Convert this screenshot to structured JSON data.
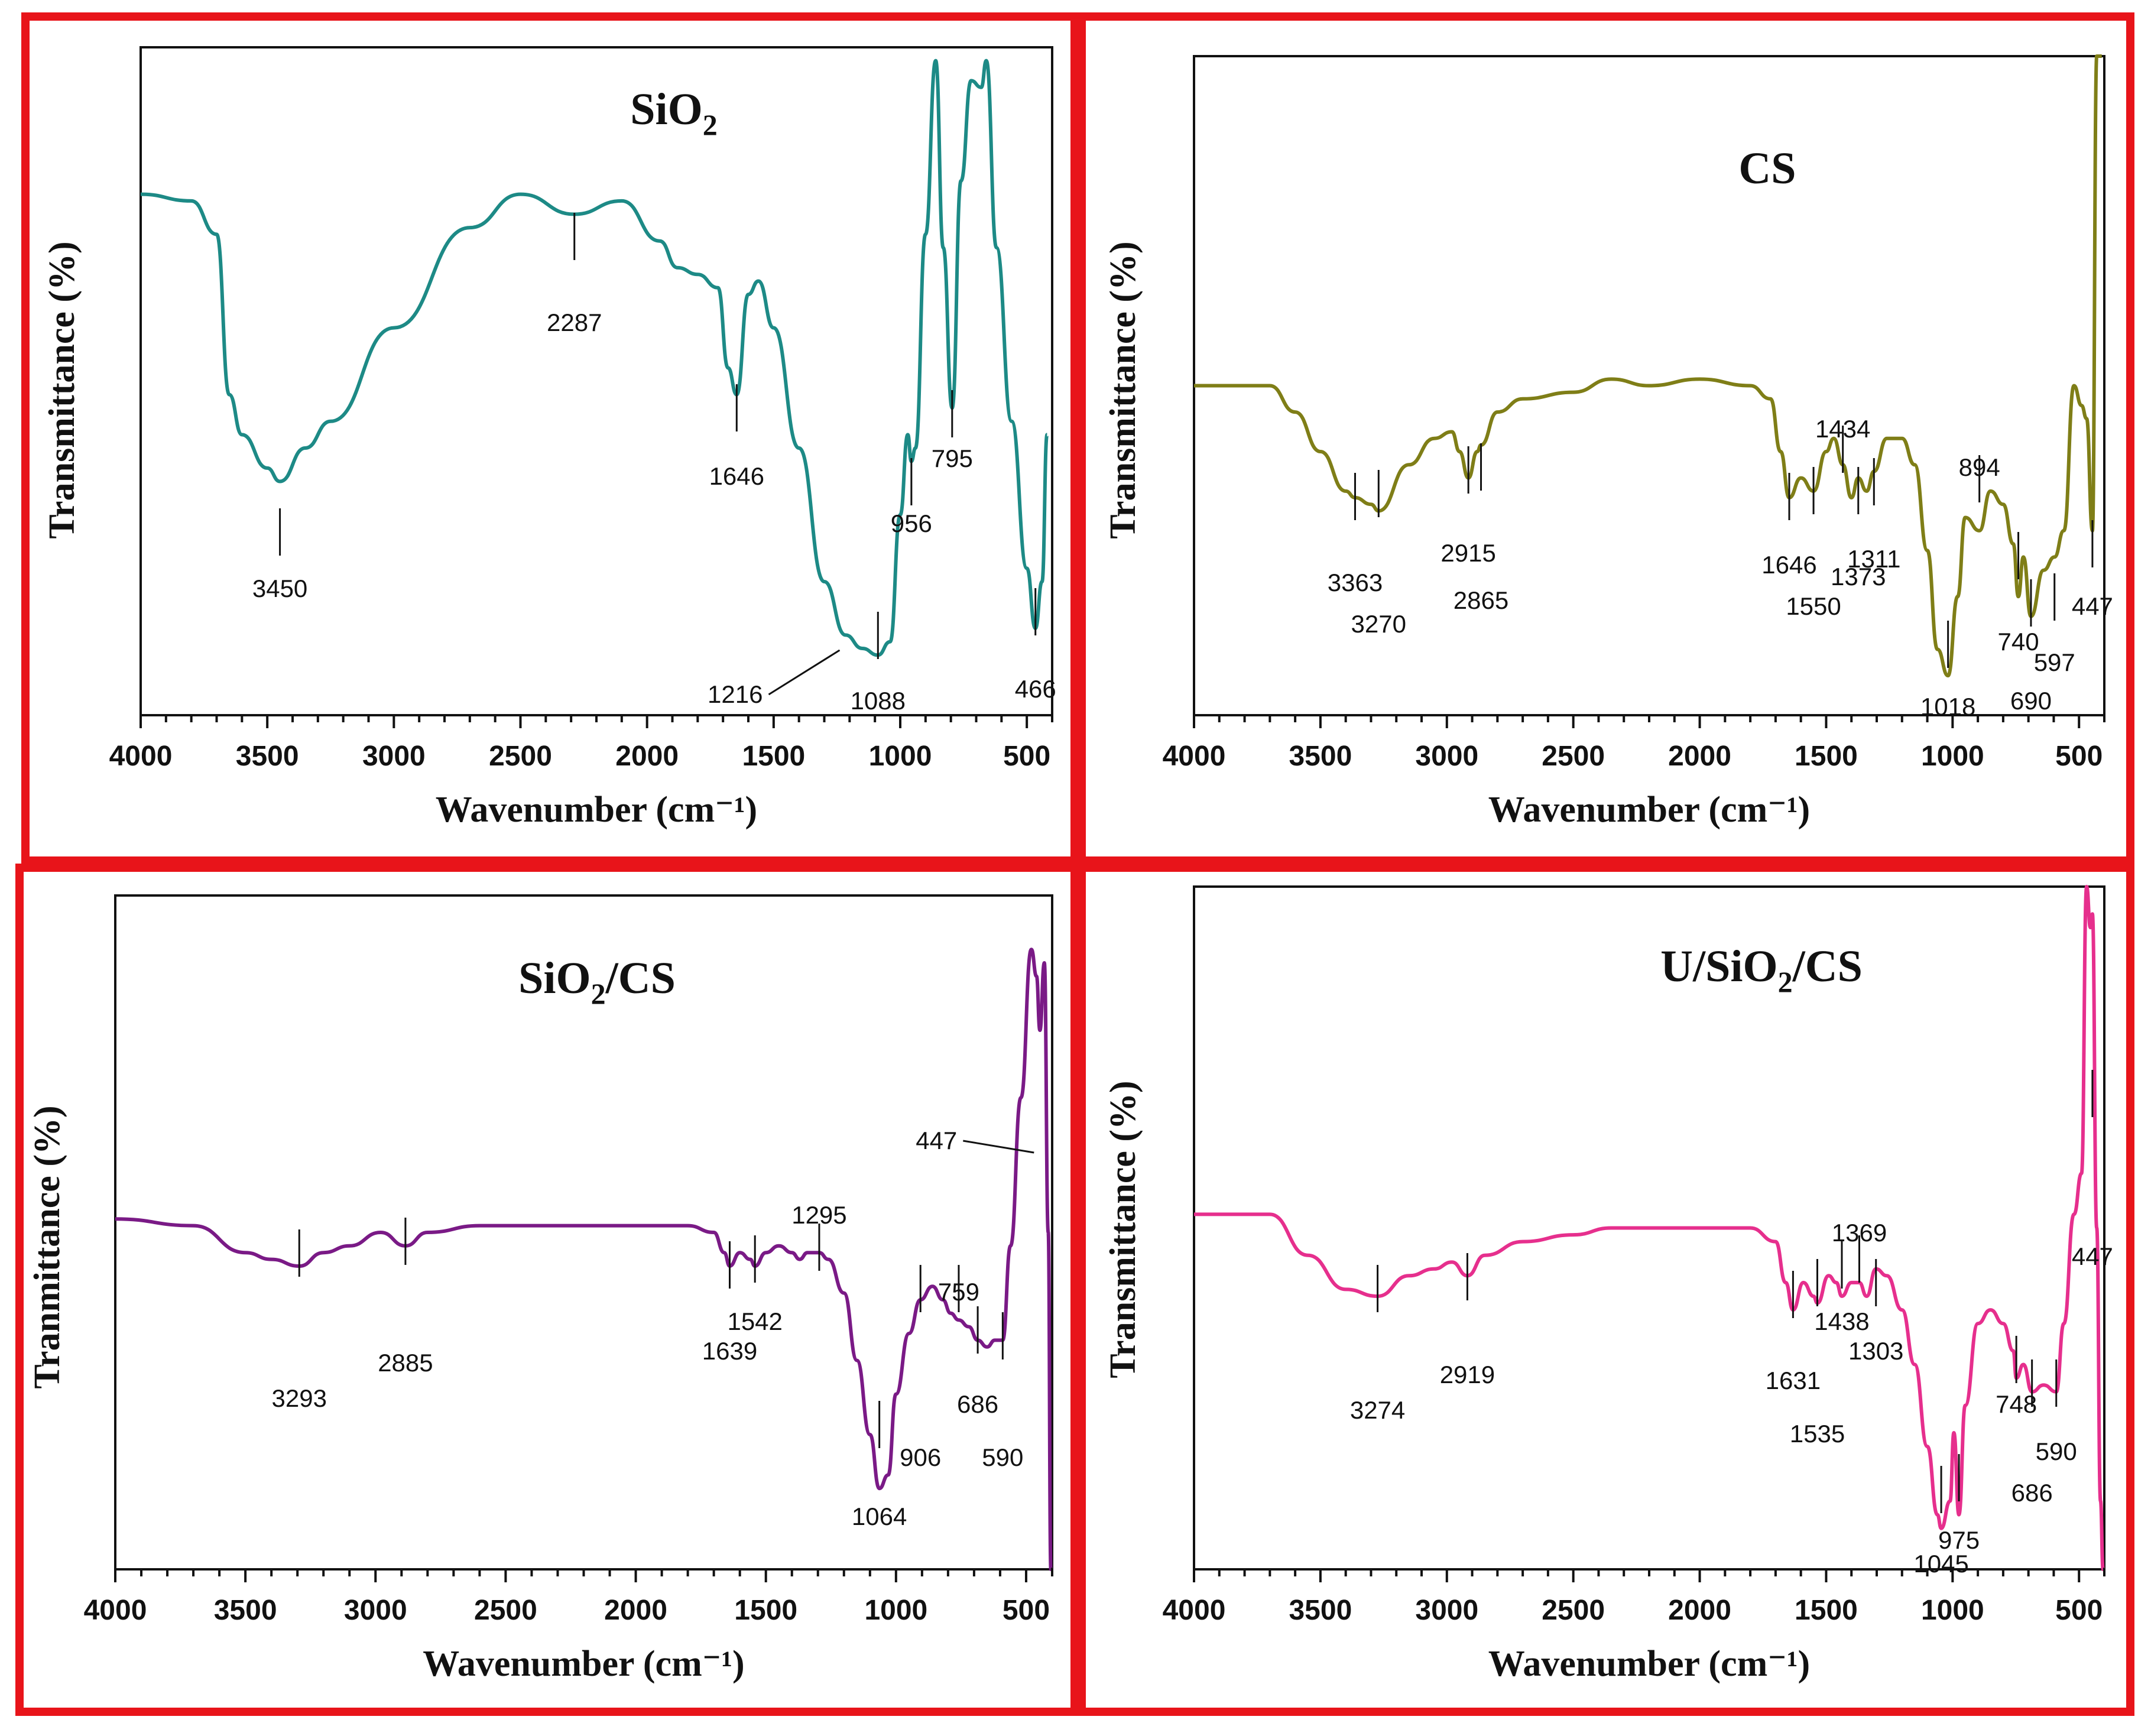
{
  "colors": {
    "frame": "#e8141a",
    "sio2": "#1d8a86",
    "cs": "#7f7e17",
    "sio2cs": "#7a1a86",
    "usio2cs": "#e62f8d"
  },
  "chart_data": [
    {
      "id": "sio2",
      "type": "line",
      "title_main": "SiO",
      "title_sub": "2",
      "title_tail": "",
      "xlabel": "Wavenumber (cm⁻¹)",
      "ylabel": "Transmittance (%)",
      "xlim": [
        4000,
        400
      ],
      "ylim": [
        0,
        100
      ],
      "xticks": [
        "4000",
        "3500",
        "3000",
        "2500",
        "2000",
        "1500",
        "1000",
        "500"
      ],
      "xtick_values": [
        4000,
        3500,
        3000,
        2500,
        2000,
        1500,
        1000,
        500
      ],
      "series": [
        {
          "name": "SiO2",
          "x": [
            4000,
            3800,
            3700,
            3650,
            3600,
            3500,
            3450,
            3350,
            3250,
            3000,
            2700,
            2500,
            2287,
            2100,
            1950,
            1880,
            1800,
            1720,
            1680,
            1646,
            1600,
            1560,
            1500,
            1400,
            1300,
            1216,
            1150,
            1088,
            1040,
            1000,
            970,
            956,
            940,
            900,
            860,
            830,
            795,
            760,
            720,
            680,
            660,
            620,
            560,
            500,
            466,
            440,
            420
          ],
          "y": [
            78,
            77,
            72,
            48,
            42,
            37,
            35,
            40,
            44,
            58,
            73,
            78,
            75,
            77,
            71,
            67,
            66,
            64,
            52,
            48,
            63,
            65,
            58,
            40,
            20,
            12,
            10,
            9,
            11,
            30,
            42,
            38,
            40,
            72,
            98,
            70,
            46,
            80,
            95,
            94,
            98,
            70,
            44,
            22,
            13,
            20,
            42
          ]
        }
      ],
      "annotations": [
        {
          "label": "3450",
          "x": 3450
        },
        {
          "label": "2287",
          "x": 2287
        },
        {
          "label": "1646",
          "x": 1646
        },
        {
          "label": "1216",
          "x": 1216
        },
        {
          "label": "1088",
          "x": 1088
        },
        {
          "label": "956",
          "x": 956
        },
        {
          "label": "795",
          "x": 795
        },
        {
          "label": "466",
          "x": 466
        }
      ]
    },
    {
      "id": "cs",
      "type": "line",
      "title_main": "CS",
      "title_sub": "",
      "title_tail": "",
      "xlabel": "Wavenumber (cm⁻¹)",
      "ylabel": "Transmittance (%)",
      "xlim": [
        4000,
        400
      ],
      "ylim": [
        0,
        100
      ],
      "xticks": [
        "4000",
        "3500",
        "3000",
        "2500",
        "2000",
        "1500",
        "1000",
        "500"
      ],
      "xtick_values": [
        4000,
        3500,
        3000,
        2500,
        2000,
        1500,
        1000,
        500
      ],
      "series": [
        {
          "name": "CS",
          "x": [
            4000,
            3700,
            3600,
            3500,
            3400,
            3363,
            3300,
            3270,
            3150,
            3050,
            2980,
            2950,
            2915,
            2880,
            2865,
            2800,
            2700,
            2500,
            2350,
            2200,
            2000,
            1800,
            1720,
            1680,
            1646,
            1600,
            1550,
            1500,
            1470,
            1434,
            1400,
            1373,
            1340,
            1311,
            1260,
            1200,
            1150,
            1100,
            1060,
            1018,
            980,
            950,
            894,
            850,
            800,
            760,
            740,
            720,
            690,
            640,
            597,
            560,
            520,
            490,
            470,
            447,
            430,
            410
          ],
          "y": [
            50,
            50,
            46,
            40,
            34,
            33,
            32,
            31,
            38,
            42,
            43,
            40,
            36,
            40,
            41,
            46,
            48,
            49,
            51,
            50,
            51,
            50,
            48,
            40,
            33,
            36,
            34,
            40,
            42,
            38,
            33,
            36,
            34,
            37,
            42,
            42,
            38,
            25,
            10,
            6,
            18,
            30,
            28,
            34,
            32,
            26,
            18,
            24,
            15,
            22,
            24,
            28,
            50,
            47,
            45,
            28,
            100,
            100
          ]
        }
      ],
      "annotations": [
        {
          "label": "3363",
          "x": 3363
        },
        {
          "label": "3270",
          "x": 3270
        },
        {
          "label": "2915",
          "x": 2915
        },
        {
          "label": "2865",
          "x": 2865
        },
        {
          "label": "1646",
          "x": 1646
        },
        {
          "label": "1550",
          "x": 1550
        },
        {
          "label": "1434",
          "x": 1434
        },
        {
          "label": "1373",
          "x": 1373
        },
        {
          "label": "1311",
          "x": 1311
        },
        {
          "label": "1018",
          "x": 1018
        },
        {
          "label": "894",
          "x": 894
        },
        {
          "label": "740",
          "x": 740
        },
        {
          "label": "690",
          "x": 690
        },
        {
          "label": "597",
          "x": 597
        },
        {
          "label": "447",
          "x": 447
        }
      ]
    },
    {
      "id": "sio2cs",
      "type": "line",
      "title_main": "SiO",
      "title_sub": "2",
      "title_tail": "/CS",
      "xlabel": "Wavenumber (cm⁻¹)",
      "ylabel": "Tranmittance (%)",
      "xlim": [
        4000,
        400
      ],
      "ylim": [
        0,
        100
      ],
      "xticks": [
        "4000",
        "3500",
        "3000",
        "2500",
        "2000",
        "1500",
        "1000",
        "500"
      ],
      "xtick_values": [
        4000,
        3500,
        3000,
        2500,
        2000,
        1500,
        1000,
        500
      ],
      "series": [
        {
          "name": "SiO2/CS",
          "x": [
            4000,
            3700,
            3500,
            3400,
            3293,
            3200,
            3100,
            2980,
            2885,
            2800,
            2600,
            2400,
            2200,
            2000,
            1800,
            1700,
            1660,
            1639,
            1600,
            1560,
            1542,
            1500,
            1450,
            1400,
            1370,
            1340,
            1295,
            1260,
            1200,
            1150,
            1100,
            1064,
            1030,
            1000,
            950,
            906,
            860,
            820,
            790,
            759,
            720,
            686,
            650,
            620,
            590,
            560,
            520,
            480,
            460,
            447,
            430,
            415,
            405
          ],
          "y": [
            52,
            51,
            47,
            46,
            45,
            47,
            48,
            50,
            48,
            50,
            51,
            51,
            51,
            51,
            51,
            50,
            47,
            45,
            47,
            46,
            45,
            47,
            48,
            47,
            46,
            47,
            47,
            46,
            41,
            31,
            20,
            12,
            14,
            26,
            35,
            40,
            42,
            40,
            38,
            37,
            36,
            34,
            33,
            34,
            34,
            48,
            70,
            92,
            88,
            80,
            90,
            50,
            0
          ]
        }
      ],
      "annotations": [
        {
          "label": "3293",
          "x": 3293
        },
        {
          "label": "2885",
          "x": 2885
        },
        {
          "label": "1639",
          "x": 1639
        },
        {
          "label": "1542",
          "x": 1542
        },
        {
          "label": "1295",
          "x": 1295
        },
        {
          "label": "1064",
          "x": 1064
        },
        {
          "label": "906",
          "x": 906
        },
        {
          "label": "759",
          "x": 759
        },
        {
          "label": "686",
          "x": 686
        },
        {
          "label": "590",
          "x": 590
        },
        {
          "label": "447",
          "x": 447
        }
      ]
    },
    {
      "id": "usio2cs",
      "type": "line",
      "title_main": "U/SiO",
      "title_sub": "2",
      "title_tail": "/CS",
      "xlabel": "Wavenumber (cm⁻¹)",
      "ylabel": "Transmittance (%)",
      "xlim": [
        4000,
        400
      ],
      "ylim": [
        0,
        100
      ],
      "xticks": [
        "4000",
        "3500",
        "3000",
        "2500",
        "2000",
        "1500",
        "1000",
        "500"
      ],
      "xtick_values": [
        4000,
        3500,
        3000,
        2500,
        2000,
        1500,
        1000,
        500
      ],
      "series": [
        {
          "name": "U/SiO2/CS",
          "x": [
            4000,
            3700,
            3550,
            3400,
            3274,
            3150,
            3050,
            2980,
            2919,
            2850,
            2700,
            2500,
            2350,
            2200,
            2000,
            1800,
            1700,
            1660,
            1631,
            1590,
            1550,
            1535,
            1490,
            1460,
            1438,
            1400,
            1369,
            1340,
            1303,
            1260,
            1200,
            1150,
            1100,
            1060,
            1045,
            1010,
            995,
            975,
            950,
            900,
            850,
            800,
            760,
            748,
            720,
            686,
            640,
            590,
            560,
            520,
            490,
            470,
            455,
            447,
            430,
            415,
            405
          ],
          "y": [
            52,
            52,
            46,
            41,
            40,
            43,
            44,
            45,
            43,
            46,
            48,
            49,
            50,
            50,
            50,
            50,
            48,
            42,
            38,
            42,
            40,
            39,
            43,
            42,
            40,
            42,
            42,
            40,
            44,
            43,
            38,
            30,
            18,
            8,
            6,
            10,
            20,
            8,
            24,
            36,
            38,
            36,
            32,
            28,
            30,
            26,
            27,
            26,
            36,
            52,
            58,
            100,
            94,
            96,
            50,
            10,
            0
          ]
        }
      ],
      "annotations": [
        {
          "label": "3274",
          "x": 3274
        },
        {
          "label": "2919",
          "x": 2919
        },
        {
          "label": "1631",
          "x": 1631
        },
        {
          "label": "1535",
          "x": 1535
        },
        {
          "label": "1438",
          "x": 1438
        },
        {
          "label": "1369",
          "x": 1369
        },
        {
          "label": "1303",
          "x": 1303
        },
        {
          "label": "1045",
          "x": 1045
        },
        {
          "label": "975",
          "x": 975
        },
        {
          "label": "748",
          "x": 748
        },
        {
          "label": "686",
          "x": 686
        },
        {
          "label": "590",
          "x": 590
        },
        {
          "label": "447",
          "x": 447
        }
      ]
    }
  ]
}
